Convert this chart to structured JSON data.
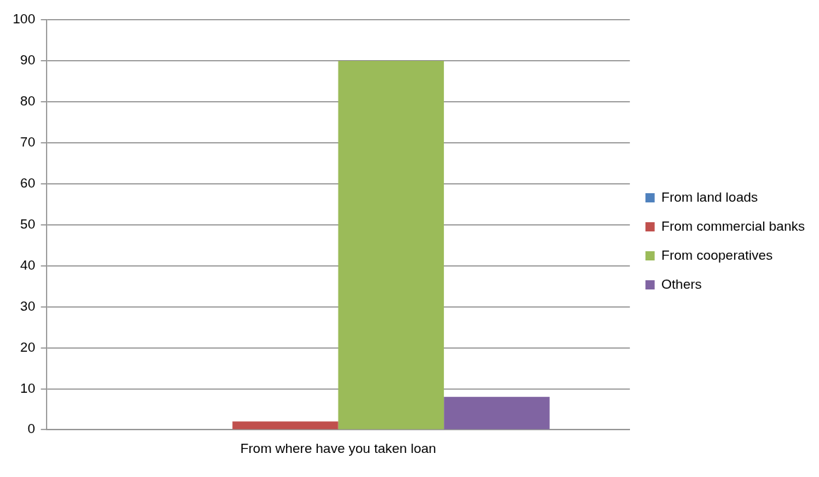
{
  "chart_data": {
    "type": "bar",
    "categories": [
      "From where have you taken loan"
    ],
    "series": [
      {
        "name": "From land loads",
        "color": "#4f81bd",
        "values": [
          0
        ]
      },
      {
        "name": "From commercial banks",
        "color": "#c0504d",
        "values": [
          2
        ]
      },
      {
        "name": "From cooperatives",
        "color": "#9bbb59",
        "values": [
          90
        ]
      },
      {
        "name": "Others",
        "color": "#8064a2",
        "values": [
          8
        ]
      }
    ],
    "ylim": [
      0,
      100
    ],
    "yticks": [
      0,
      10,
      20,
      30,
      40,
      50,
      60,
      70,
      80,
      90,
      100
    ],
    "grid": "y",
    "legend": "right"
  }
}
